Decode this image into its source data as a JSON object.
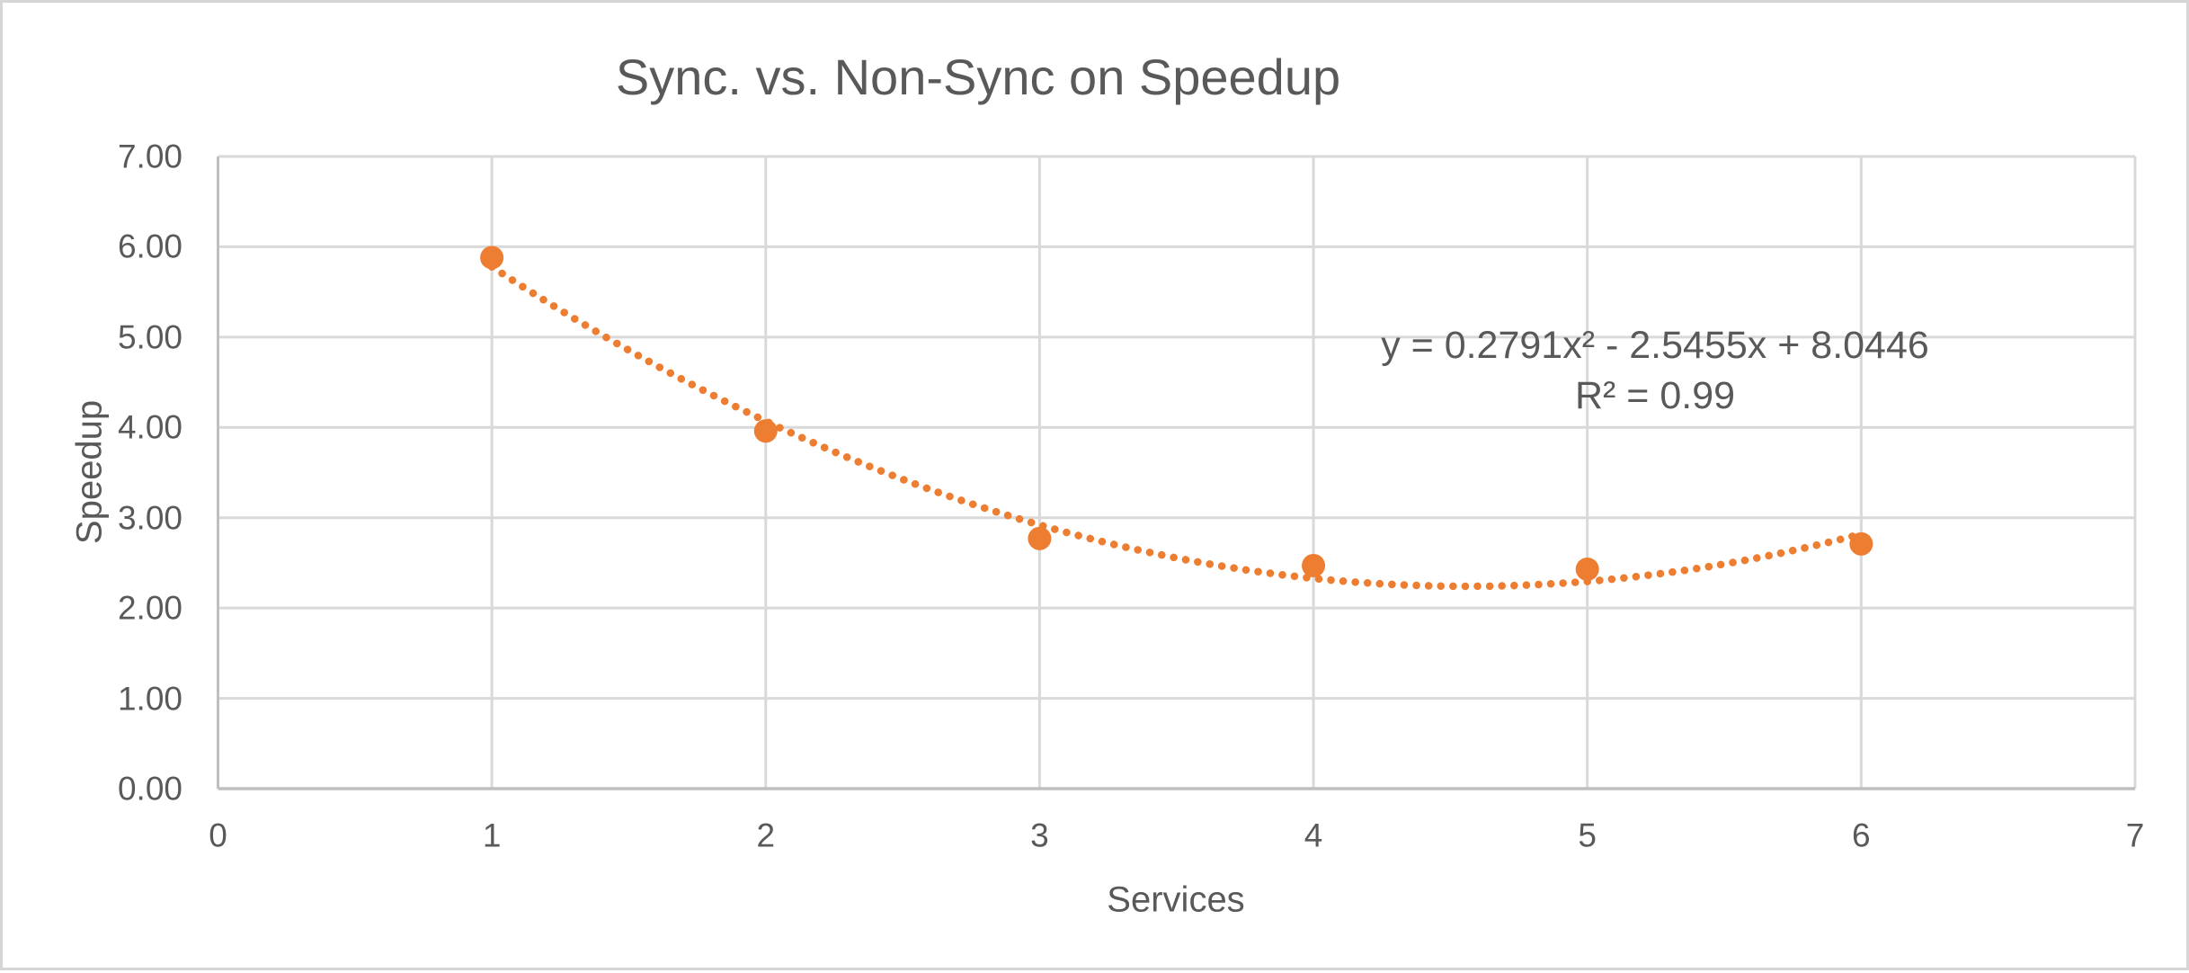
{
  "chart_data": {
    "type": "scatter",
    "title": "Sync. vs. Non-Sync on Speedup",
    "xlabel": "Services",
    "ylabel": "Speedup",
    "x": [
      1,
      2,
      3,
      4,
      5,
      6
    ],
    "y": [
      5.88,
      3.96,
      2.77,
      2.47,
      2.43,
      2.71
    ],
    "xlim": [
      0,
      7
    ],
    "ylim": [
      0,
      7
    ],
    "x_ticks": [
      "0",
      "1",
      "2",
      "3",
      "4",
      "5",
      "6",
      "7"
    ],
    "y_ticks": [
      "0.00",
      "1.00",
      "2.00",
      "3.00",
      "4.00",
      "5.00",
      "6.00",
      "7.00"
    ],
    "grid": true,
    "legend": "none",
    "trendline": {
      "type": "polynomial",
      "degree": 2,
      "a": 0.2791,
      "b": -2.5455,
      "c": 8.0446,
      "x_range": [
        1,
        6
      ],
      "style": "dotted",
      "equation_label": "y = 0.2791x² - 2.5455x + 8.0446",
      "r_squared_label": "R² = 0.99"
    },
    "colors": {
      "series": "#ED7D31",
      "text": "#595959",
      "gridline": "#D9D9D9",
      "axis_line": "#BFBFBF",
      "border": "#D6D6D6",
      "background": "#FFFFFF"
    }
  }
}
